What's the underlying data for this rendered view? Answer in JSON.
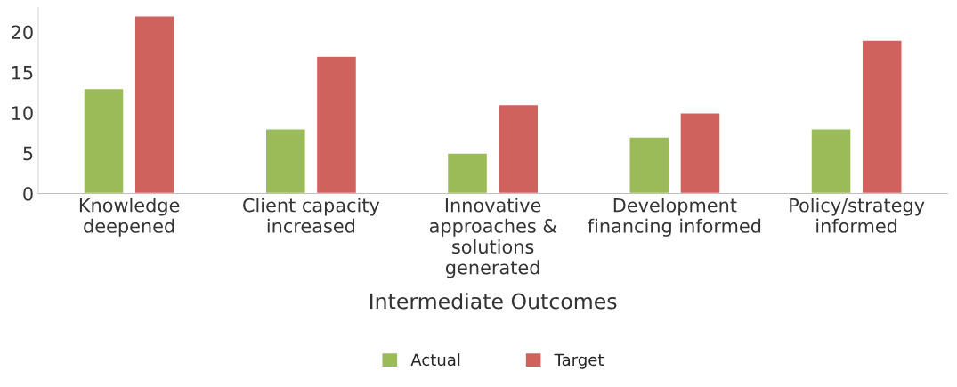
{
  "chart_data": {
    "type": "bar",
    "xlabel": "Intermediate Outcomes",
    "categories": [
      "Knowledge\ndeepened",
      "Client capacity\nincreased",
      "Innovative\napproaches &\nsolutions\ngenerated",
      "Development\nfinancing informed",
      "Policy/strategy\ninformed"
    ],
    "series": [
      {
        "name": "Actual",
        "color": "#9bbb59",
        "values": [
          13,
          8,
          5,
          7,
          8
        ]
      },
      {
        "name": "Target",
        "color": "#d0625e",
        "values": [
          22,
          17,
          11,
          10,
          19
        ]
      }
    ],
    "ylim": [
      0,
      23
    ],
    "yticks": [
      0,
      5,
      10,
      15,
      20
    ],
    "grid": false,
    "legend": "bottom"
  }
}
